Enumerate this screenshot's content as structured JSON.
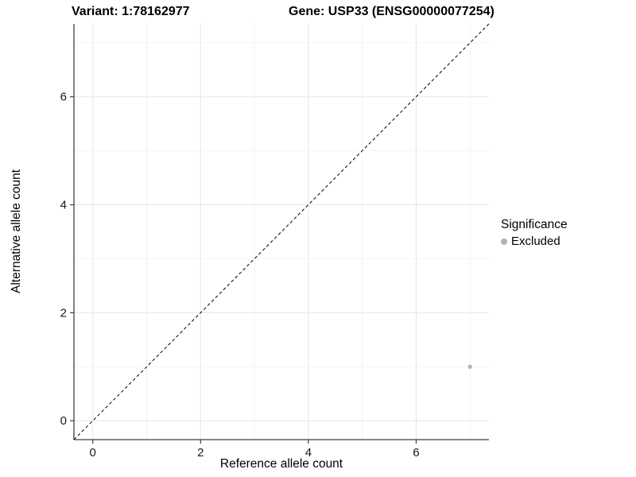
{
  "titles": {
    "left": "Variant: 1:78162977",
    "right": "Gene: USP33 (ENSG00000077254)"
  },
  "axes": {
    "x_label": "Reference allele count",
    "y_label": "Alternative allele count"
  },
  "legend": {
    "title": "Significance",
    "items": [
      {
        "label": "Excluded",
        "color": "#b3b3b3"
      }
    ]
  },
  "chart_data": {
    "type": "scatter",
    "title": "Variant: 1:78162977  |  Gene: USP33 (ENSG00000077254)",
    "xlabel": "Reference allele count",
    "ylabel": "Alternative allele count",
    "xlim": [
      -0.35,
      7.35
    ],
    "ylim": [
      -0.35,
      7.35
    ],
    "x_major_ticks": [
      0,
      2,
      4,
      6
    ],
    "y_major_ticks": [
      0,
      2,
      4,
      6
    ],
    "x_minor_ticks": [
      1,
      3,
      5,
      7
    ],
    "y_minor_ticks": [
      1,
      3,
      5,
      7
    ],
    "grid": true,
    "legend_position": "right",
    "series": [
      {
        "name": "Excluded",
        "points": [
          {
            "x": 7,
            "y": 1
          }
        ],
        "color": "#b3b3b3"
      }
    ],
    "reference_line": {
      "kind": "abline",
      "slope": 1,
      "intercept": 0,
      "style": "dashed",
      "color": "#000000"
    },
    "colors": {
      "axis": "#404040",
      "grid_major": "#e6e6e6",
      "grid_minor": "#f2f2f2",
      "tick_text": "#1a1a1a",
      "point": "#b3b3b3"
    }
  }
}
